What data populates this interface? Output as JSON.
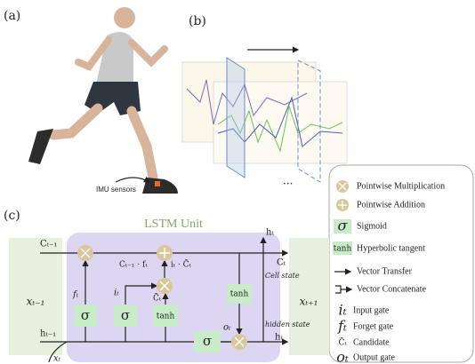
{
  "panels": {
    "a": "(a)",
    "b": "(b)",
    "c": "(c)"
  },
  "runner": {
    "sensor_label": "IMU sensors"
  },
  "signals": {
    "ellipsis": "..."
  },
  "lstm": {
    "title": "LSTM Unit",
    "x_prev": "xₜ₋₁",
    "x_next": "xₜ₊₁",
    "x_t": "xₜ",
    "c_prev": "Cₜ₋₁",
    "h_prev": "hₜ₋₁",
    "c_f": "Cₜ₋₁ · fₜ",
    "i_c": "iₜ · C̃ₜ",
    "c_t": "Cₜ",
    "cell_state": "Cell state",
    "h_top": "hₜ",
    "h_t": "hₜ",
    "hidden_state": "hidden state",
    "f_t": "fₜ",
    "i_t": "iₜ",
    "c_tilde": "C̃ₜ",
    "o_t": "oₜ",
    "sigma_f": "σ",
    "sigma_i": "σ",
    "sigma_o": "σ",
    "tanh_c": "tanh",
    "tanh_h": "tanh"
  },
  "legend": {
    "items": [
      {
        "symbol": "",
        "label": "Pointwise Multiplication"
      },
      {
        "symbol": "",
        "label": "Pointwise Addition"
      },
      {
        "symbol": "σ",
        "label": "Sigmoid"
      },
      {
        "symbol": "tanh",
        "label": "Hyperbolic tangent"
      },
      {
        "symbol": "",
        "label": "Vector Transfer"
      },
      {
        "symbol": "",
        "label": "Vector Concatenate"
      },
      {
        "symbol": "iₜ",
        "label": "Input gate"
      },
      {
        "symbol": "fₜ",
        "label": "Forget gate"
      },
      {
        "symbol": "C̃ₜ",
        "label": "Candidate"
      },
      {
        "symbol": "oₜ",
        "label": "Output gate"
      }
    ]
  }
}
